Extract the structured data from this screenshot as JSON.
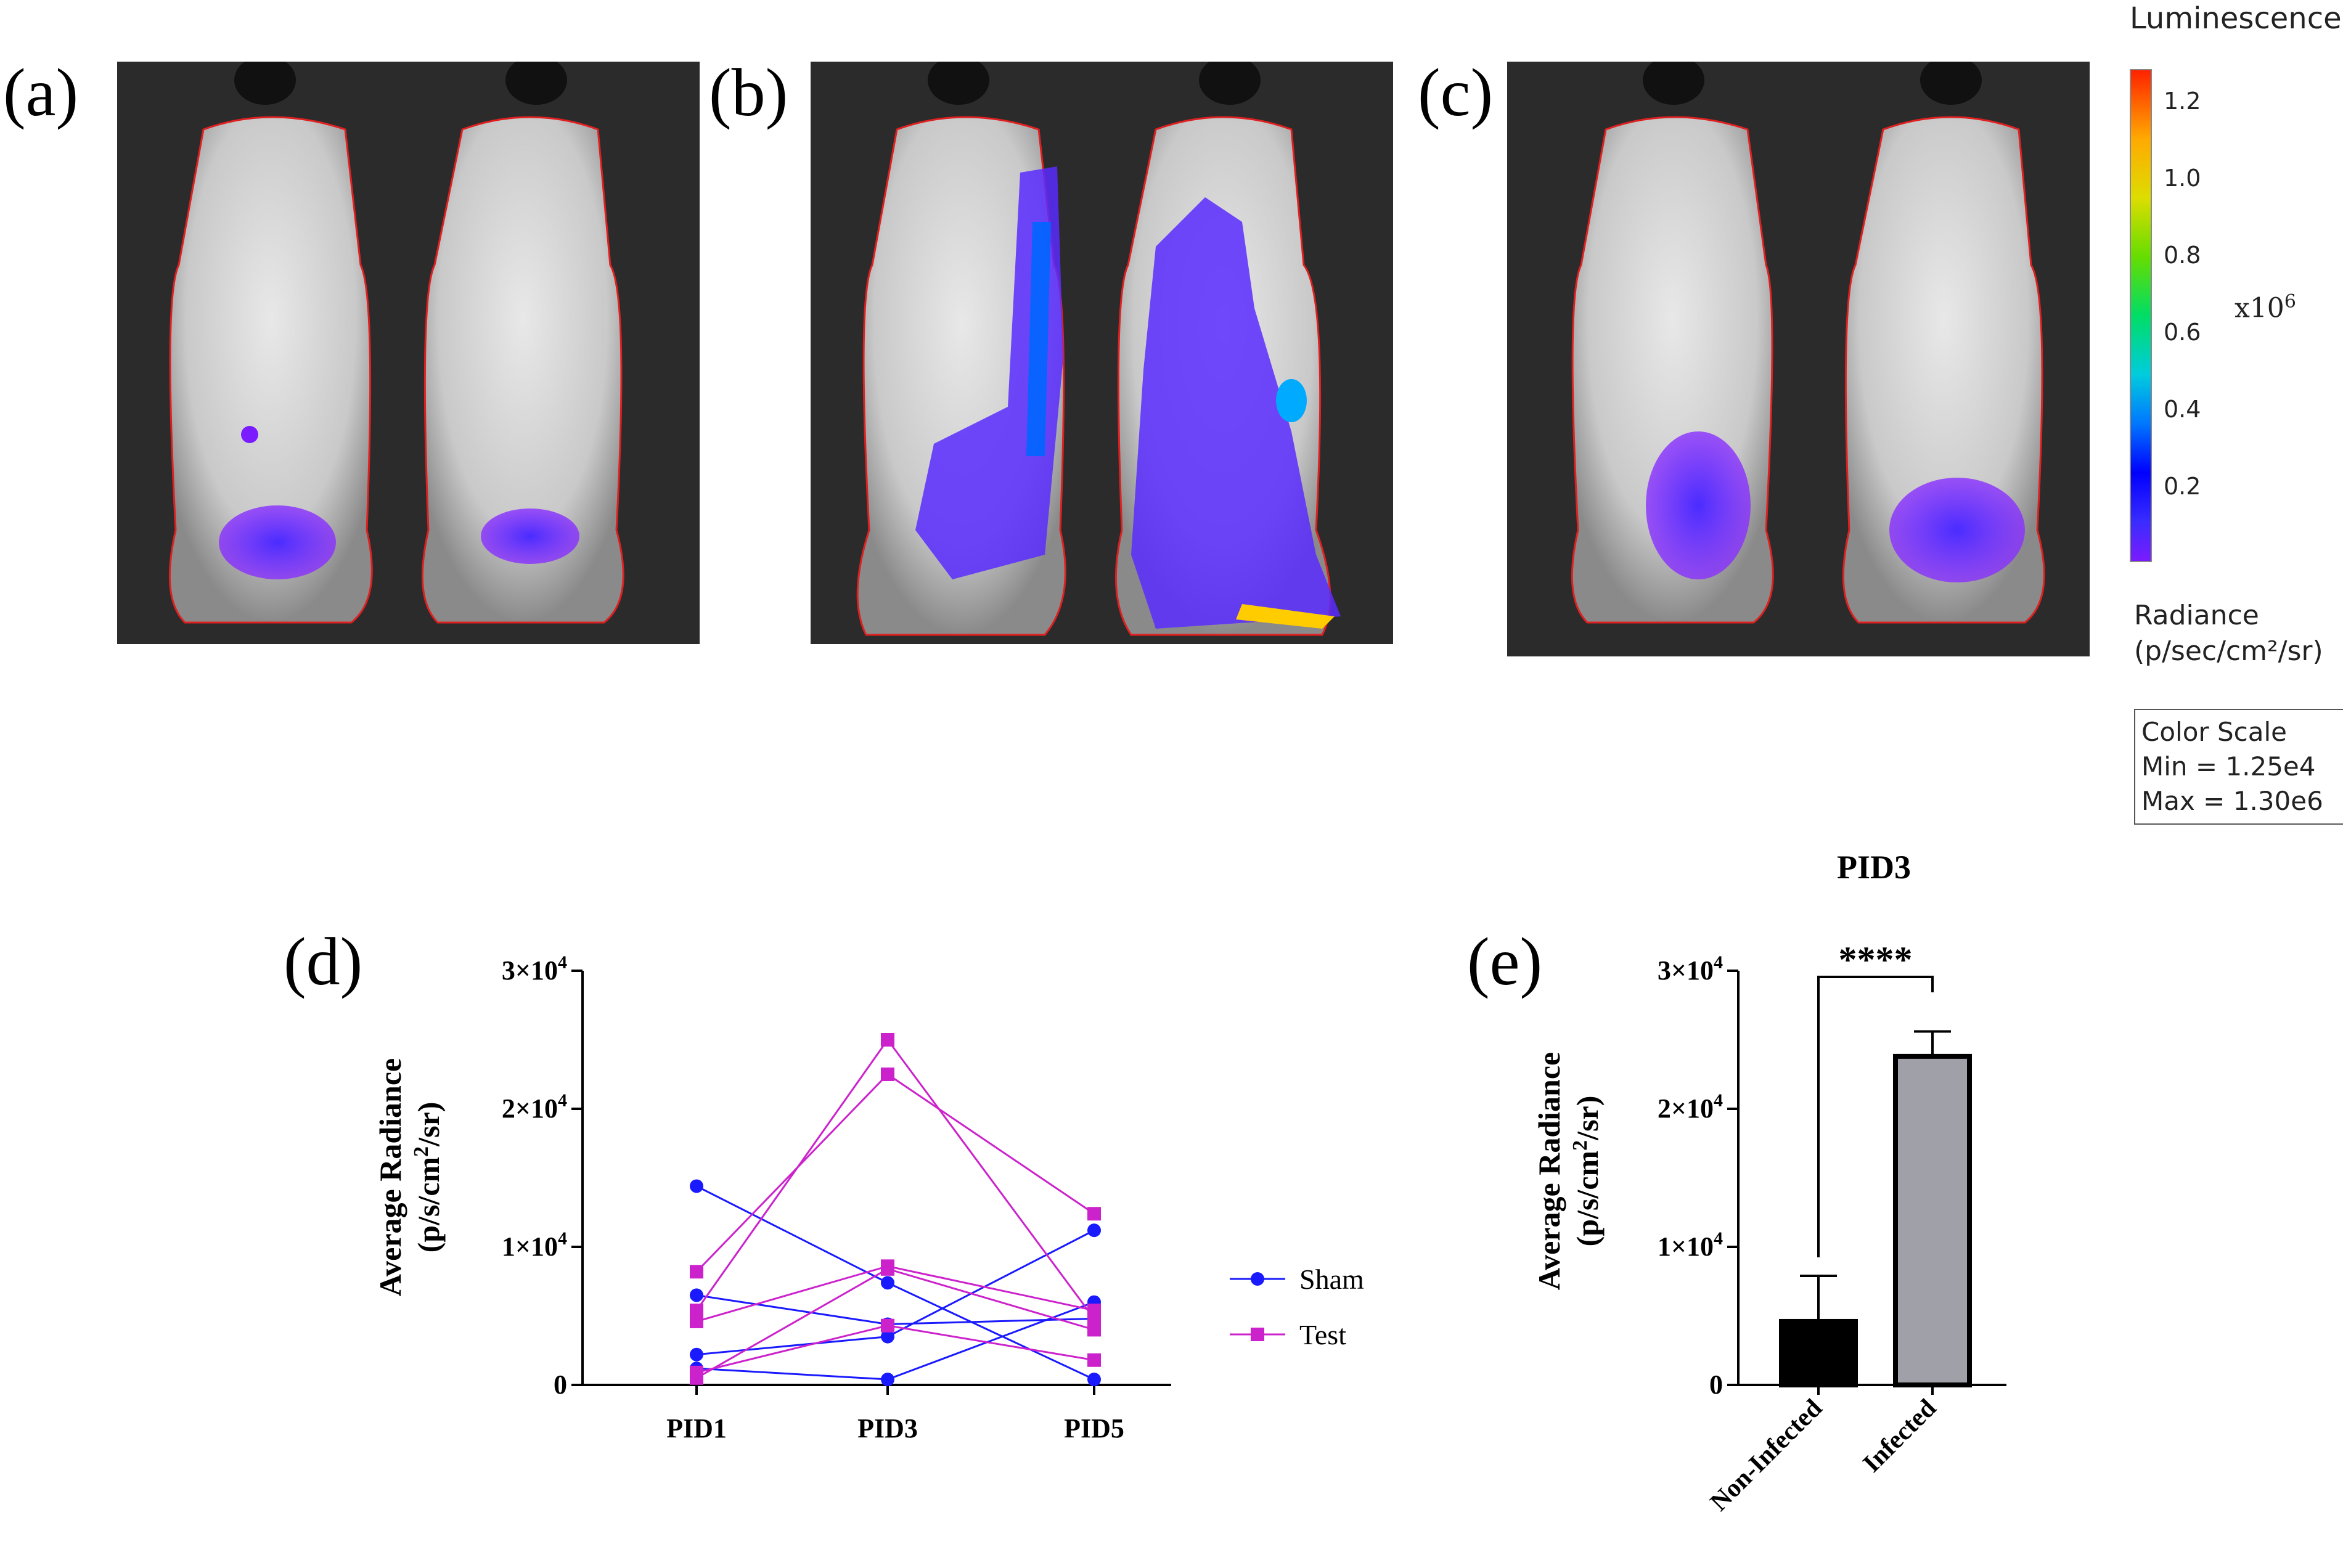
{
  "panels": {
    "a": {
      "label": "(a)"
    },
    "b": {
      "label": "(b)"
    },
    "c": {
      "label": "(c)"
    },
    "d": {
      "label": "(d)"
    },
    "e": {
      "label": "(e)"
    }
  },
  "legend_scale": {
    "title": "Luminescence",
    "ticks": [
      "1.2",
      "1.0",
      "0.8",
      "0.6",
      "0.4",
      "0.2"
    ],
    "multiplier_base": "x10",
    "multiplier_exp": "6",
    "radiance_line1": "Radiance",
    "radiance_line2": "(p/sec/cm²/sr)",
    "box_line1": "Color Scale",
    "box_line2": "Min = 1.25e4",
    "box_line3": "Max = 1.30e6",
    "colors": {
      "low": "#7a1cff",
      "high": "#ff2200"
    }
  },
  "chart_data": [
    {
      "type": "line",
      "panel": "(d)",
      "title": "",
      "xlabel": "",
      "ylabel": "Average Radiance (p/s/cm2/sr)",
      "ylabel_line1": "Average Radiance",
      "ylabel_line2_prefix": "(p/s/cm",
      "ylabel_line2_exp": "2",
      "ylabel_line2_suffix": "/sr)",
      "categories": [
        "PID1",
        "PID3",
        "PID5"
      ],
      "ylim": [
        0,
        30000
      ],
      "yticks": [
        {
          "value": 0,
          "base": "0",
          "exp": ""
        },
        {
          "value": 10000,
          "base": "1×10",
          "exp": "4"
        },
        {
          "value": 20000,
          "base": "2×10",
          "exp": "4"
        },
        {
          "value": 30000,
          "base": "3×10",
          "exp": "4"
        }
      ],
      "series": [
        {
          "name": "Sham",
          "color": "#1a1aff",
          "marker": "circle",
          "lines": [
            [
              14400,
              7400,
              400
            ],
            [
              6500,
              4400,
              4800
            ],
            [
              2200,
              3500,
              11200
            ],
            [
              1200,
              400,
              6000
            ]
          ]
        },
        {
          "name": "Test",
          "color": "#cc22cc",
          "marker": "square",
          "lines": [
            [
              8200,
              22500,
              12400
            ],
            [
              5400,
              25000,
              4800
            ],
            [
              4600,
              8600,
              5400
            ],
            [
              500,
              8400,
              4000
            ],
            [
              900,
              4300,
              1800
            ]
          ]
        }
      ],
      "legend_position": "right"
    },
    {
      "type": "bar",
      "panel": "(e)",
      "title": "PID3",
      "ylabel": "Average Radiance (p/s/cm2/sr)",
      "ylabel_line1": "Average Radiance",
      "ylabel_line2_prefix": "(p/s/cm",
      "ylabel_line2_exp": "2",
      "ylabel_line2_suffix": "/sr)",
      "categories": [
        "Non-Infected",
        "Infected"
      ],
      "values": [
        4600,
        23800
      ],
      "errors": [
        3300,
        1800
      ],
      "colors": [
        "#000000",
        "#a0a0a8"
      ],
      "ylim": [
        0,
        30000
      ],
      "yticks": [
        {
          "value": 0,
          "base": "0",
          "exp": ""
        },
        {
          "value": 10000,
          "base": "1×10",
          "exp": "4"
        },
        {
          "value": 20000,
          "base": "2×10",
          "exp": "4"
        },
        {
          "value": 30000,
          "base": "3×10",
          "exp": "4"
        }
      ],
      "significance": "****"
    }
  ]
}
